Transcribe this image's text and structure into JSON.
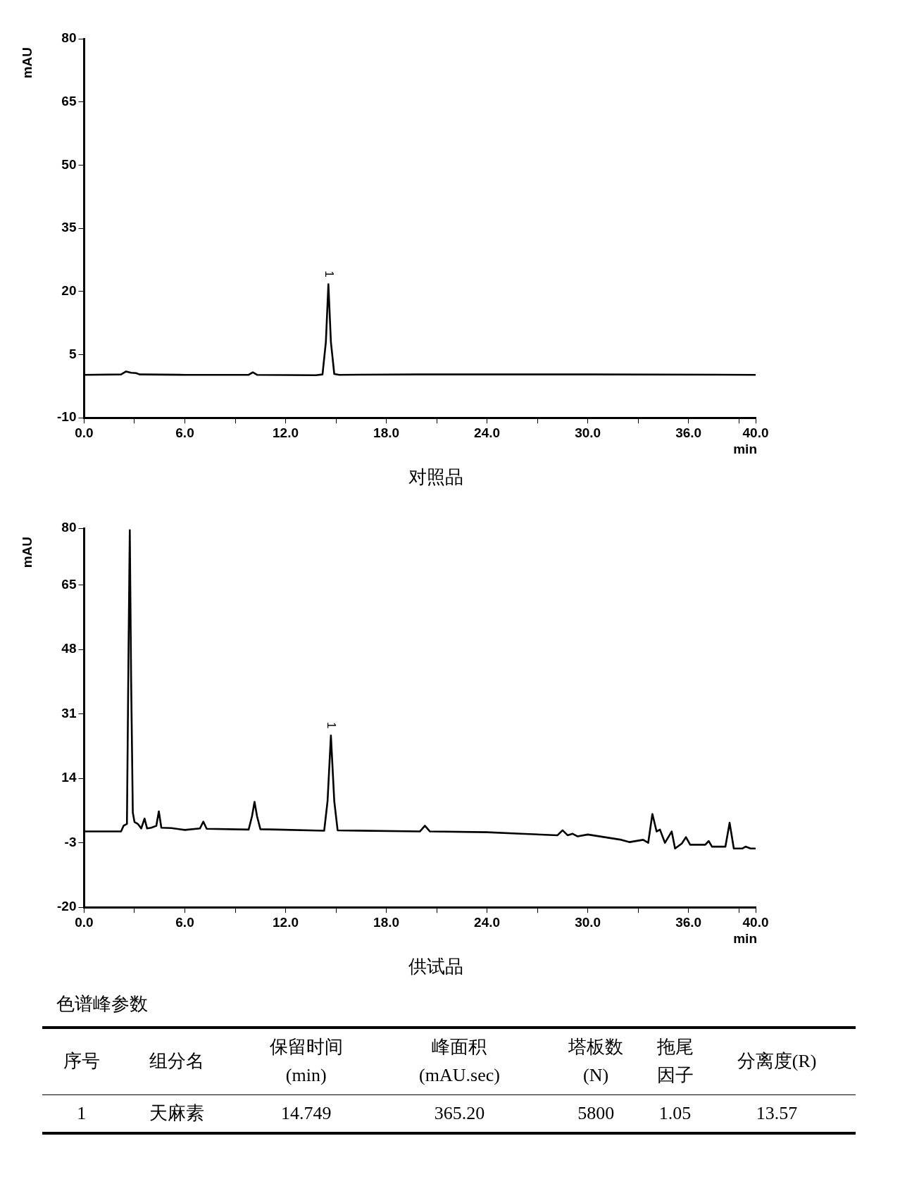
{
  "chart_data": [
    {
      "type": "line",
      "xlabel": "min",
      "ylabel": "mAU",
      "xlim": [
        0,
        40
      ],
      "ylim": [
        -10,
        80
      ],
      "xticks": [
        {
          "value": 0,
          "label": "0.0"
        },
        {
          "value": 3,
          "label": null
        },
        {
          "value": 6,
          "label": "6.0"
        },
        {
          "value": 9,
          "label": null
        },
        {
          "value": 12,
          "label": "12.0"
        },
        {
          "value": 15,
          "label": null
        },
        {
          "value": 18,
          "label": "18.0"
        },
        {
          "value": 21,
          "label": null
        },
        {
          "value": 24,
          "label": "24.0"
        },
        {
          "value": 27,
          "label": null
        },
        {
          "value": 30,
          "label": "30.0"
        },
        {
          "value": 33,
          "label": null
        },
        {
          "value": 36,
          "label": "36.0"
        },
        {
          "value": 39,
          "label": null
        },
        {
          "value": 40,
          "label": "40.0"
        }
      ],
      "yticks": [
        -10,
        5,
        20,
        35,
        50,
        65,
        80
      ],
      "grid": false,
      "legend": false,
      "marker": "none",
      "line_style": "solid",
      "series": [
        {
          "color": "#000000",
          "x": [
            0,
            2.2,
            2.5,
            2.8,
            3.1,
            3.3,
            6,
            9.8,
            10.05,
            10.3,
            13.8,
            14.2,
            14.4,
            14.55,
            14.7,
            14.9,
            15.2,
            20,
            30,
            40
          ],
          "values": [
            0.2,
            0.3,
            1.0,
            0.7,
            0.6,
            0.3,
            0.2,
            0.2,
            0.8,
            0.2,
            0.1,
            0.3,
            8,
            21.7,
            8,
            0.4,
            0.2,
            0.3,
            0.3,
            0.2
          ]
        }
      ],
      "annotations": [
        {
          "text": "1",
          "x": 14.55,
          "y": 21.7
        },
        "对照品"
      ]
    },
    {
      "type": "line",
      "xlabel": "min",
      "ylabel": "mAU",
      "xlim": [
        0,
        40
      ],
      "ylim": [
        -20,
        80
      ],
      "xticks": [
        {
          "value": 0,
          "label": "0.0"
        },
        {
          "value": 3,
          "label": null
        },
        {
          "value": 6,
          "label": "6.0"
        },
        {
          "value": 9,
          "label": null
        },
        {
          "value": 12,
          "label": "12.0"
        },
        {
          "value": 15,
          "label": null
        },
        {
          "value": 18,
          "label": "18.0"
        },
        {
          "value": 21,
          "label": null
        },
        {
          "value": 24,
          "label": "24.0"
        },
        {
          "value": 27,
          "label": null
        },
        {
          "value": 30,
          "label": "30.0"
        },
        {
          "value": 33,
          "label": null
        },
        {
          "value": 36,
          "label": "36.0"
        },
        {
          "value": 39,
          "label": null
        },
        {
          "value": 40,
          "label": "40.0"
        }
      ],
      "yticks": [
        -20,
        -3,
        14,
        31,
        48,
        65,
        80
      ],
      "grid": false,
      "legend": false,
      "marker": "none",
      "line_style": "solid",
      "series": [
        {
          "color": "#000000",
          "x": [
            0,
            2.2,
            2.35,
            2.55,
            2.65,
            2.72,
            2.8,
            2.9,
            3.0,
            3.2,
            3.4,
            3.6,
            3.75,
            4.0,
            4.3,
            4.45,
            4.6,
            5.2,
            6,
            6.9,
            7.1,
            7.3,
            9.8,
            10.0,
            10.15,
            10.3,
            10.5,
            11.5,
            14.3,
            14.5,
            14.7,
            14.9,
            15.1,
            20.0,
            20.3,
            20.6,
            24,
            26,
            28.2,
            28.5,
            28.8,
            29.1,
            29.4,
            30,
            31,
            32,
            32.5,
            33.3,
            33.6,
            33.85,
            34.1,
            34.3,
            34.6,
            35.0,
            35.2,
            35.6,
            35.85,
            36.1,
            37.0,
            37.2,
            37.4,
            38.2,
            38.45,
            38.7,
            39.2,
            39.4,
            39.7,
            40
          ],
          "values": [
            0.0,
            0.0,
            1.5,
            2,
            50,
            79.5,
            40,
            5,
            2.5,
            2.0,
            0.8,
            3.4,
            0.8,
            1.0,
            1.5,
            5.3,
            1.0,
            0.9,
            0.4,
            0.8,
            2.6,
            0.7,
            0.5,
            4,
            7.8,
            4,
            0.6,
            0.5,
            0.2,
            8,
            25.3,
            8,
            0.3,
            0.0,
            1.5,
            0.0,
            -0.2,
            -0.6,
            -1.0,
            0.3,
            -1.0,
            -0.6,
            -1.3,
            -0.8,
            -1.5,
            -2.2,
            -2.8,
            -2.2,
            -3.0,
            4.6,
            0.0,
            0.5,
            -3.0,
            0.0,
            -4.5,
            -3.2,
            -1.5,
            -3.5,
            -3.5,
            -2.5,
            -4.0,
            -4.0,
            2.3,
            -4.5,
            -4.5,
            -4.0,
            -4.5,
            -4.5
          ]
        }
      ],
      "annotations": [
        {
          "text": "1",
          "x": 14.7,
          "y": 25.3
        },
        "供试品"
      ]
    },
    {
      "type": "other",
      "title": "色谱峰参数",
      "annotations": [
        "序号",
        "组分名",
        "保留时间\n(min)",
        "峰面积\n(mAU.sec)",
        "塔板数\n(N)",
        "拖尾因子",
        "分离度(R)",
        "1",
        "天麻素",
        "14.749",
        "365.20",
        "5800",
        "1.05",
        "13.57"
      ]
    }
  ]
}
